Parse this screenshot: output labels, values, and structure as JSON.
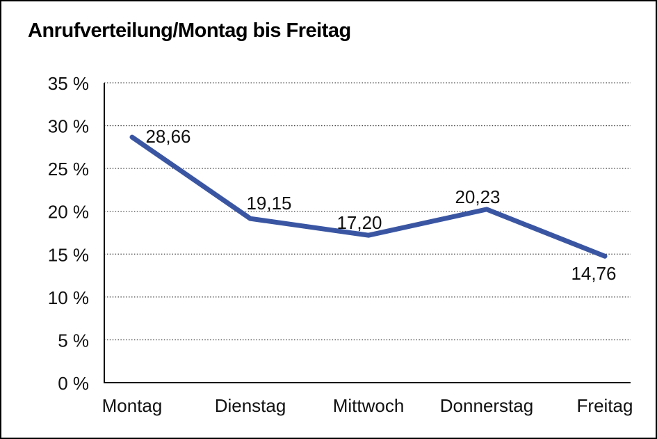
{
  "page": {
    "background_color": "#ffffff",
    "border_color": "#000000"
  },
  "chart_data": {
    "type": "line",
    "title": "Anrufverteilung/Montag bis Freitag",
    "categories": [
      "Montag",
      "Dienstag",
      "Mittwoch",
      "Donnerstag",
      "Freitag"
    ],
    "values": [
      28.66,
      19.15,
      17.2,
      20.23,
      14.76
    ],
    "data_labels": [
      "28,66",
      "19,15",
      "17,20",
      "20,23",
      "14,76"
    ],
    "xlabel": "",
    "ylabel": "",
    "ylim": [
      0,
      35
    ],
    "y_tick_step": 5,
    "y_tick_labels": [
      "35 %",
      "30 %",
      "25 %",
      "20 %",
      "15 %",
      "10 %",
      "5 %",
      "0 %"
    ],
    "grid": "horizontal-dotted",
    "legend": "none",
    "line_color": "#3A56A3",
    "axis_color": "#000000",
    "gridline_color": "#4a4a4a",
    "text_color": "#111111"
  }
}
